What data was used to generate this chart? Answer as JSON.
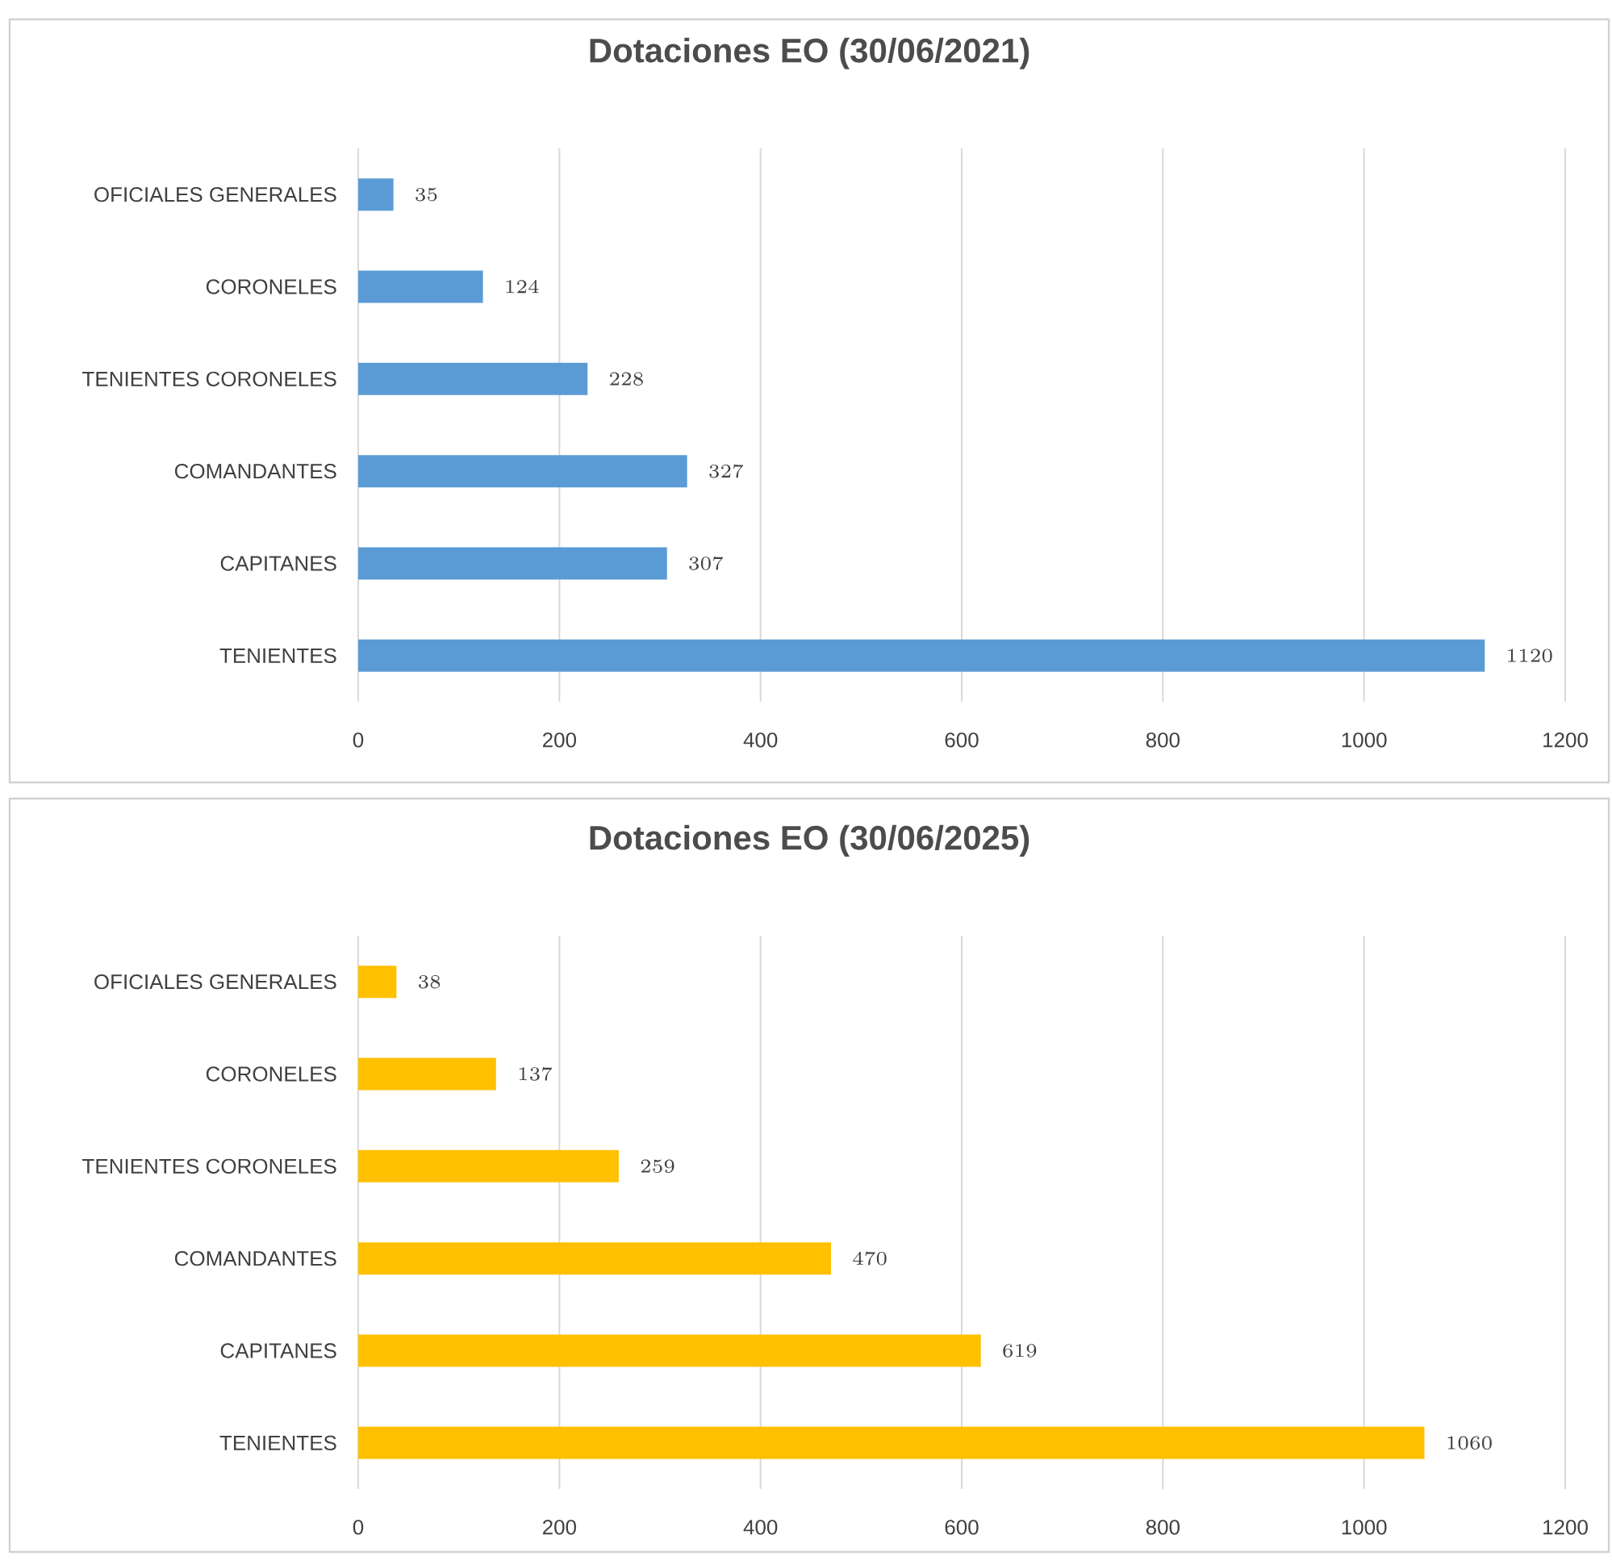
{
  "chart_data": [
    {
      "type": "bar",
      "orientation": "horizontal",
      "title": "Dotaciones EO (30/06/2021)",
      "categories": [
        "OFICIALES GENERALES",
        "CORONELES",
        "TENIENTES CORONELES",
        "COMANDANTES",
        "CAPITANES",
        "TENIENTES"
      ],
      "values": [
        35,
        124,
        228,
        327,
        307,
        1120
      ],
      "color": "#5b9bd5",
      "xlim": [
        0,
        1200
      ],
      "xticks": [
        0,
        200,
        400,
        600,
        800,
        1000,
        1200
      ],
      "grid": "x",
      "data_labels": true
    },
    {
      "type": "bar",
      "orientation": "horizontal",
      "title": "Dotaciones EO (30/06/2025)",
      "categories": [
        "OFICIALES GENERALES",
        "CORONELES",
        "TENIENTES CORONELES",
        "COMANDANTES",
        "CAPITANES",
        "TENIENTES"
      ],
      "values": [
        38,
        137,
        259,
        470,
        619,
        1060
      ],
      "color": "#ffc000",
      "xlim": [
        0,
        1200
      ],
      "xticks": [
        0,
        200,
        400,
        600,
        800,
        1000,
        1200
      ],
      "grid": "x",
      "data_labels": true
    }
  ]
}
